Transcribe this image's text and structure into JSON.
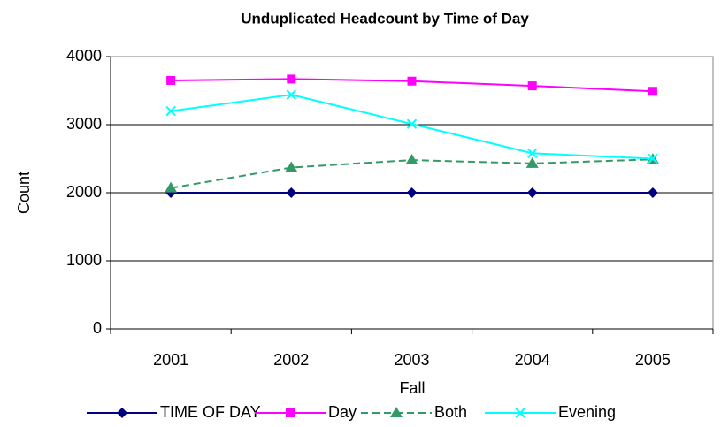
{
  "chart_data": {
    "type": "line",
    "title": "Unduplicated Headcount by Time of Day",
    "xlabel": "Fall",
    "ylabel": "Count",
    "categories": [
      "2001",
      "2002",
      "2003",
      "2004",
      "2005"
    ],
    "series": [
      {
        "name": "TIME OF DAY",
        "color": "#000080",
        "marker": "diamond",
        "dash": false,
        "values": [
          2000,
          2000,
          2000,
          2000,
          2000
        ]
      },
      {
        "name": "Day",
        "color": "#ff00ff",
        "marker": "square",
        "dash": false,
        "values": [
          3650,
          3670,
          3640,
          3570,
          3490
        ]
      },
      {
        "name": "Both",
        "color": "#339966",
        "marker": "triangle",
        "dash": true,
        "values": [
          2070,
          2370,
          2480,
          2430,
          2490
        ]
      },
      {
        "name": "Evening",
        "color": "#00ffff",
        "marker": "x",
        "dash": false,
        "values": [
          3200,
          3440,
          3010,
          2580,
          2500
        ]
      }
    ],
    "ylim": [
      0,
      4000
    ],
    "yticks": [
      0,
      1000,
      2000,
      3000,
      4000
    ],
    "grid": true,
    "legend": "bottom"
  }
}
